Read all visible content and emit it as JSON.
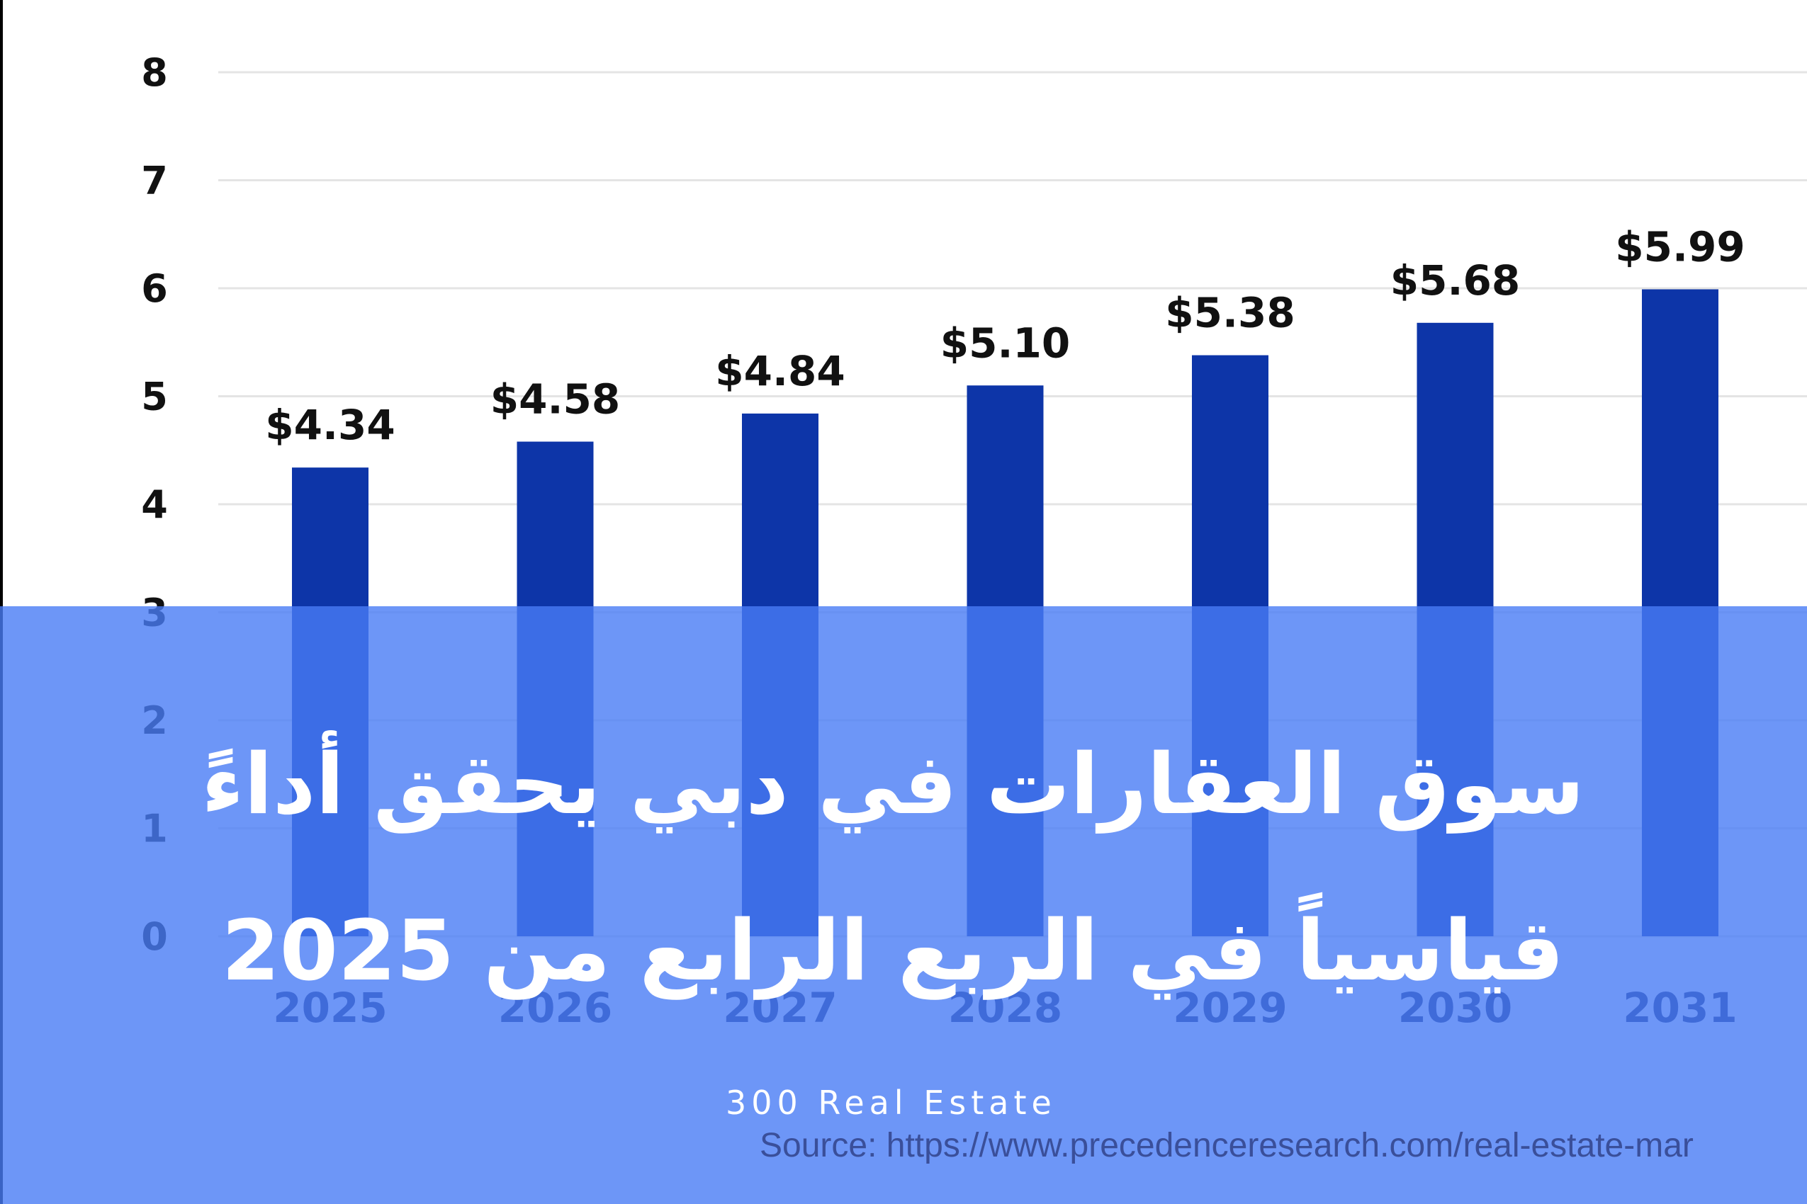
{
  "chart_data": {
    "type": "bar",
    "categories": [
      "2025",
      "2026",
      "2027",
      "2028",
      "2029",
      "2030",
      "2031"
    ],
    "values": [
      4.34,
      4.58,
      4.84,
      5.1,
      5.38,
      5.68,
      5.99
    ],
    "data_labels": [
      "$4.34",
      "$4.58",
      "$4.84",
      "$5.10",
      "$5.38",
      "$5.68",
      "$5.99"
    ],
    "yticks": [
      "0",
      "1",
      "2",
      "3",
      "4",
      "5",
      "6",
      "7",
      "8"
    ],
    "ylim": [
      0,
      8
    ],
    "grid": true,
    "bar_color": "#0d35a8",
    "xlabel": "",
    "ylabel": "",
    "title": ""
  },
  "overlay": {
    "color": "#487cf5",
    "headline_line1": "سوق العقارات في دبي يحقق أداءً",
    "headline_line2": "قياسياً في الربع الرابع من 2025",
    "brand": "300 Real Estate",
    "source": "Source: https://www.precedenceresearch.com/real-estate-mar"
  }
}
